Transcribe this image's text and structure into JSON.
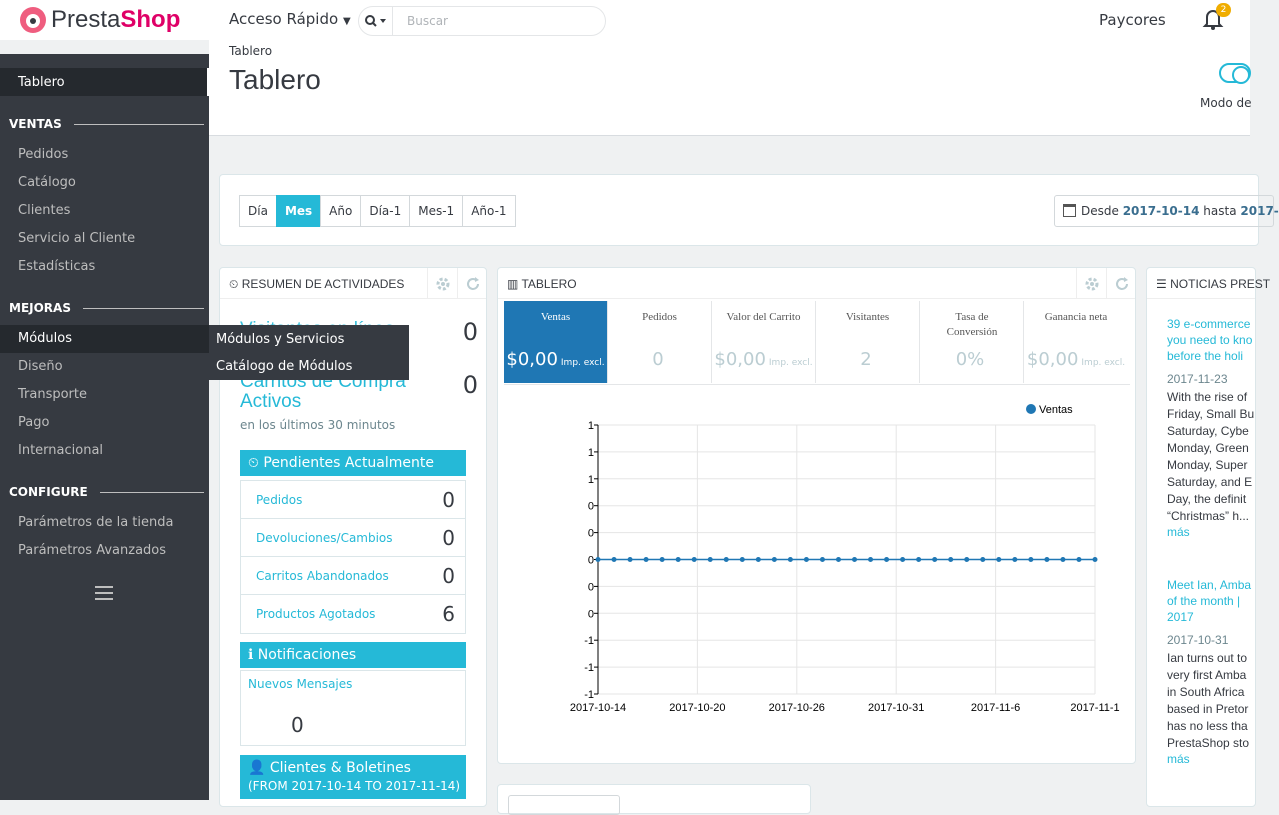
{
  "app": {
    "brand_prefix": "Presta",
    "brand_suffix": "Shop"
  },
  "topbar": {
    "quick_access": "Acceso Rápido",
    "search_placeholder": "Buscar",
    "shop_name": "Paycores",
    "notifications_count": "2"
  },
  "sidebar": {
    "active": "Tablero",
    "sections": [
      {
        "title": "VENTAS",
        "items": [
          "Pedidos",
          "Catálogo",
          "Clientes",
          "Servicio al Cliente",
          "Estadísticas"
        ]
      },
      {
        "title": "MEJORAS",
        "items": [
          "Módulos",
          "Diseño",
          "Transporte",
          "Pago",
          "Internacional"
        ]
      },
      {
        "title": "CONFIGURE",
        "items": [
          "Parámetros de la tienda",
          "Parámetros Avanzados"
        ]
      }
    ],
    "submenu": [
      "Módulos y Servicios",
      "Catálogo de Módulos"
    ]
  },
  "header": {
    "breadcrumb": "Tablero",
    "title": "Tablero",
    "mode_label": "Modo de"
  },
  "filters": {
    "periods": [
      "Día",
      "Mes",
      "Año",
      "Día-1",
      "Mes-1",
      "Año-1"
    ],
    "active": "Mes",
    "date_from_label": "Desde",
    "date_from": "2017-10-14",
    "date_to_label": "hasta",
    "date_to": "2017-"
  },
  "activity": {
    "title": "RESUMEN DE ACTIVIDADES",
    "visitors_label": "Visitantes en línea",
    "visitors_value": "0",
    "carts_label": "Carritos de Compra Activos",
    "carts_value": "0",
    "carts_sub": "en los últimos 30 minutos",
    "pending_title": "Pendientes Actualmente",
    "pending": [
      {
        "label": "Pedidos",
        "value": "0"
      },
      {
        "label": "Devoluciones/Cambios",
        "value": "0"
      },
      {
        "label": "Carritos Abandonados",
        "value": "0"
      },
      {
        "label": "Productos Agotados",
        "value": "6"
      }
    ],
    "notif_title": "Notificaciones",
    "notif_label": "Nuevos Mensajes",
    "notif_value": "0",
    "clients_title": "Clientes & Boletines",
    "clients_range": "(FROM 2017-10-14 TO 2017-11-14)"
  },
  "dashboard": {
    "title": "TABLERO",
    "kpis": [
      {
        "label": "Ventas",
        "value": "$0,00",
        "suffix": "Imp. excl."
      },
      {
        "label": "Pedidos",
        "value": "0",
        "suffix": ""
      },
      {
        "label": "Valor del Carrito",
        "value": "$0,00",
        "suffix": "Imp. excl."
      },
      {
        "label": "Visitantes",
        "value": "2",
        "suffix": ""
      },
      {
        "label": "Tasa de Conversión",
        "value": "0%",
        "suffix": ""
      },
      {
        "label": "Ganancia neta",
        "value": "$0,00",
        "suffix": "Imp. excl."
      }
    ]
  },
  "chart_data": {
    "type": "line",
    "series": [
      {
        "name": "Ventas",
        "values": [
          0,
          0,
          0,
          0,
          0,
          0,
          0,
          0,
          0,
          0,
          0,
          0,
          0,
          0,
          0,
          0,
          0,
          0,
          0,
          0,
          0,
          0,
          0,
          0,
          0,
          0,
          0,
          0,
          0,
          0,
          0,
          0
        ]
      }
    ],
    "ytick_labels": [
      "1",
      "1",
      "1",
      "0",
      "0",
      "0",
      "0",
      "0",
      "-1",
      "-1",
      "-1"
    ],
    "xtick_labels": [
      "2017-10-14",
      "2017-10-20",
      "2017-10-26",
      "2017-10-31",
      "2017-11-6",
      "2017-11-1"
    ],
    "legend": "top-right",
    "grid": true,
    "color": "#1f77b4"
  },
  "news": {
    "title": "NOTICIAS PREST",
    "items": [
      {
        "title": "39 e-commerce\nyou need to kno\nbefore the holi",
        "date": "2017-11-23",
        "body": "With the rise of\nFriday, Small Bu\nSaturday, Cybe\nMonday, Green\nMonday, Super\nSaturday, and E\nDay, the definit\n“Christmas” h...",
        "more": "más"
      },
      {
        "title": "Meet Ian, Amba\nof the month |\n2017",
        "date": "2017-10-31",
        "body": "Ian turns out to\nvery first Amba\nin South Africa\nbased in Pretor\nhas no less tha\nPrestaShop sto",
        "more": "más"
      }
    ]
  }
}
